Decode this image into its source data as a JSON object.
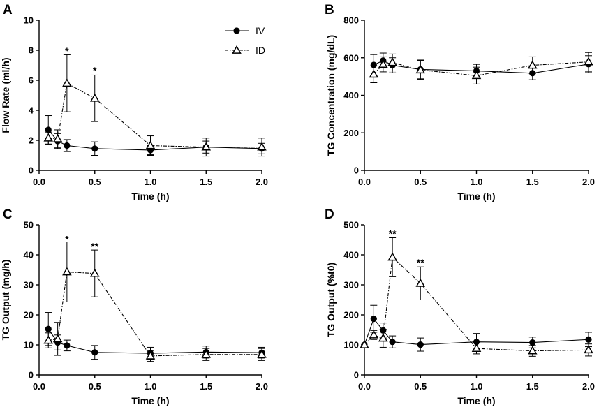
{
  "chart_data": [
    {
      "type": "line",
      "panel_label": "A",
      "xlabel": "Time (h)",
      "ylabel": "Flow Rate (ml/h)",
      "xlim": [
        0,
        2
      ],
      "ylim": [
        0,
        10
      ],
      "xticks": [
        "0.0",
        "0.5",
        "1.0",
        "1.5",
        "2.0"
      ],
      "yticks": [
        "0",
        "2",
        "4",
        "6",
        "8",
        "10"
      ],
      "legend": {
        "placement": "top-center",
        "entries": [
          "IV",
          "ID"
        ]
      },
      "series": [
        {
          "name": "IV",
          "marker": "filled-circle",
          "style": "solid",
          "x": [
            0.083,
            0.167,
            0.25,
            0.5,
            1.0,
            1.5,
            2.0
          ],
          "y": [
            2.7,
            1.95,
            1.65,
            1.45,
            1.35,
            1.55,
            1.45
          ],
          "err": [
            0.95,
            0.5,
            0.4,
            0.45,
            0.3,
            0.4,
            0.35
          ]
        },
        {
          "name": "ID",
          "marker": "open-triangle",
          "style": "dash-dot",
          "x": [
            0.083,
            0.167,
            0.25,
            0.5,
            1.0,
            1.5,
            2.0
          ],
          "y": [
            2.15,
            2.1,
            5.8,
            4.8,
            1.65,
            1.55,
            1.55
          ],
          "err": [
            0.4,
            0.6,
            1.9,
            1.55,
            0.65,
            0.6,
            0.6
          ]
        }
      ],
      "annotations": [
        {
          "x": 0.25,
          "y": 8.0,
          "text": "*"
        },
        {
          "x": 0.5,
          "y": 6.7,
          "text": "*"
        }
      ]
    },
    {
      "type": "line",
      "panel_label": "B",
      "xlabel": "Time (h)",
      "ylabel": "TG Concentration (mg/dL)",
      "xlim": [
        0,
        2
      ],
      "ylim": [
        0,
        800
      ],
      "xticks": [
        "0.0",
        "0.5",
        "1.0",
        "1.5",
        "2.0"
      ],
      "yticks": [
        "0",
        "200",
        "400",
        "600",
        "800"
      ],
      "series": [
        {
          "name": "IV",
          "marker": "filled-circle",
          "style": "solid",
          "x": [
            0.083,
            0.167,
            0.25,
            0.5,
            1.0,
            1.5,
            2.0
          ],
          "y": [
            562,
            585,
            560,
            538,
            530,
            518,
            566
          ],
          "err": [
            55,
            40,
            40,
            50,
            35,
            35,
            45
          ]
        },
        {
          "name": "ID",
          "marker": "open-triangle",
          "style": "dash-dot",
          "x": [
            0.083,
            0.167,
            0.25,
            0.5,
            1.0,
            1.5,
            2.0
          ],
          "y": [
            512,
            565,
            575,
            535,
            505,
            560,
            578
          ],
          "err": [
            45,
            40,
            45,
            50,
            45,
            45,
            50
          ]
        }
      ],
      "annotations": []
    },
    {
      "type": "line",
      "panel_label": "C",
      "xlabel": "Time (h)",
      "ylabel": "TG Output (mg/h)",
      "xlim": [
        0,
        2
      ],
      "ylim": [
        0,
        50
      ],
      "xticks": [
        "0.0",
        "0.5",
        "1.0",
        "1.5",
        "2.0"
      ],
      "yticks": [
        "0",
        "10",
        "20",
        "30",
        "40",
        "50"
      ],
      "series": [
        {
          "name": "IV",
          "marker": "filled-circle",
          "style": "solid",
          "x": [
            0.083,
            0.167,
            0.25,
            0.5,
            1.0,
            1.5,
            2.0
          ],
          "y": [
            15.3,
            10.8,
            9.8,
            7.5,
            7.2,
            7.6,
            7.4
          ],
          "err": [
            5.5,
            2.5,
            1.8,
            2.3,
            2.0,
            2.0,
            1.8
          ]
        },
        {
          "name": "ID",
          "marker": "open-triangle",
          "style": "dash-dot",
          "x": [
            0.083,
            0.167,
            0.25,
            0.5,
            1.0,
            1.5,
            2.0
          ],
          "y": [
            11.5,
            12.0,
            34.3,
            33.8,
            6.3,
            6.8,
            6.8
          ],
          "err": [
            2.5,
            5.5,
            10.0,
            7.8,
            1.8,
            2.0,
            2.0
          ]
        }
      ],
      "annotations": [
        {
          "x": 0.25,
          "y": 45.5,
          "text": "*"
        },
        {
          "x": 0.5,
          "y": 43.0,
          "text": "**"
        }
      ]
    },
    {
      "type": "line",
      "panel_label": "D",
      "xlabel": "Time (h)",
      "ylabel": "TG Output (%t0)",
      "xlim": [
        0,
        2
      ],
      "ylim": [
        0,
        500
      ],
      "xticks": [
        "0.0",
        "0.5",
        "1.0",
        "1.5",
        "2.0"
      ],
      "yticks": [
        "0",
        "100",
        "200",
        "300",
        "400",
        "500"
      ],
      "series": [
        {
          "name": "IV",
          "marker": "filled-circle",
          "style": "solid",
          "x": [
            0,
            0.083,
            0.167,
            0.25,
            0.5,
            1.0,
            1.5,
            2.0
          ],
          "y": [
            100,
            187,
            148,
            110,
            101,
            110,
            108,
            118
          ],
          "err": [
            0,
            45,
            25,
            20,
            22,
            28,
            18,
            24
          ]
        },
        {
          "name": "ID",
          "marker": "open-triangle",
          "style": "dash-dot",
          "x": [
            0,
            0.083,
            0.167,
            0.25,
            0.5,
            1.0,
            1.5,
            2.0
          ],
          "y": [
            100,
            133,
            122,
            392,
            305,
            88,
            80,
            83
          ],
          "err": [
            0,
            15,
            30,
            65,
            55,
            18,
            18,
            20
          ]
        }
      ],
      "annotations": [
        {
          "x": 0.25,
          "y": 473,
          "text": "**"
        },
        {
          "x": 0.5,
          "y": 377,
          "text": "**"
        }
      ]
    }
  ]
}
